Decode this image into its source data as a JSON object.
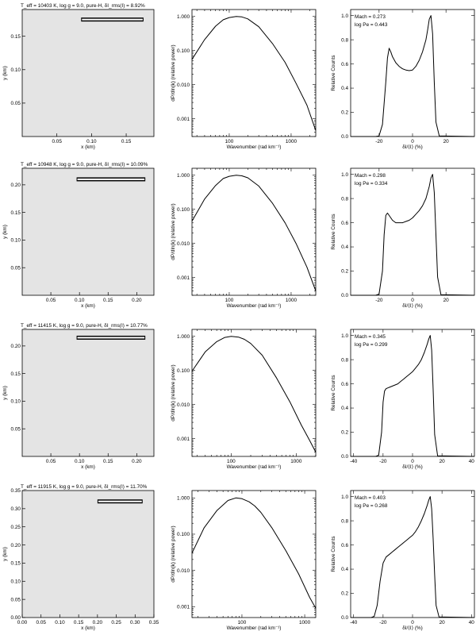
{
  "figure": {
    "rows": [
      {
        "image_title": "T_eff = 10403 K, log g = 9.0, pure-H, δI_rms(I) = 8.92%",
        "image": {
          "xticks": [
            "0.05",
            "0.10",
            "0.15"
          ],
          "yticks": [
            "0.05",
            "0.10",
            "0.15"
          ],
          "xlabel": "x (km)",
          "ylabel": "y (km)"
        },
        "spectrum": {
          "xticks": [
            "100",
            "1000"
          ],
          "yticks": [
            "1.000",
            "0.100",
            "0.010",
            "0.001"
          ],
          "xlabel": "Wavenumber (rad km⁻¹)",
          "ylabel": "dP/dln(k) (relative power)"
        },
        "histogram": {
          "annotation": [
            "Mach = 0.273",
            "log Pe = 0.443"
          ],
          "xticks": [
            "-20",
            "0",
            "20"
          ],
          "yticks": [
            "0.0",
            "0.2",
            "0.4",
            "0.6",
            "0.8",
            "1.0"
          ],
          "xlabel": "δI/⟨I⟩ (%)",
          "ylabel": "Relative Counts"
        }
      },
      {
        "image_title": "T_eff = 10948 K, log g = 9.0, pure-H, δI_rms(I) = 10.09%",
        "image": {
          "xticks": [
            "0.05",
            "0.10",
            "0.15",
            "0.20"
          ],
          "yticks": [
            "0.05",
            "0.10",
            "0.15",
            "0.20"
          ],
          "xlabel": "x (km)",
          "ylabel": "y (km)"
        },
        "spectrum": {
          "xticks": [
            "100",
            "1000"
          ],
          "yticks": [
            "1.000",
            "0.100",
            "0.010",
            "0.001"
          ],
          "xlabel": "Wavenumber (rad km⁻¹)",
          "ylabel": "dP/dln(k) (relative power)"
        },
        "histogram": {
          "annotation": [
            "Mach = 0.298",
            "log Pe = 0.334"
          ],
          "xticks": [
            "-20",
            "0",
            "20"
          ],
          "yticks": [
            "0.0",
            "0.2",
            "0.4",
            "0.6",
            "0.8",
            "1.0"
          ],
          "xlabel": "δI/⟨I⟩ (%)",
          "ylabel": "Relative Counts"
        }
      },
      {
        "image_title": "T_eff = 11415 K, log g = 9.0, pure-H, δI_rms(I) = 10.77%",
        "image": {
          "xticks": [
            "0.05",
            "0.10",
            "0.15",
            "0.20"
          ],
          "yticks": [
            "0.05",
            "0.10",
            "0.15",
            "0.20"
          ],
          "xlabel": "x (km)",
          "ylabel": "y (km)"
        },
        "spectrum": {
          "xticks": [
            "100",
            "1000"
          ],
          "yticks": [
            "1.000",
            "0.100",
            "0.010",
            "0.001"
          ],
          "xlabel": "Wavenumber (rad km⁻¹)",
          "ylabel": "dP/dln(k) (relative power)"
        },
        "histogram": {
          "annotation": [
            "Mach = 0.345",
            "log Pe = 0.299"
          ],
          "xticks": [
            "-40",
            "-20",
            "0",
            "20",
            "40"
          ],
          "yticks": [
            "0.0",
            "0.2",
            "0.4",
            "0.6",
            "0.8",
            "1.0"
          ],
          "xlabel": "δI/⟨I⟩ (%)",
          "ylabel": "Relative Counts"
        }
      },
      {
        "image_title": "T_eff = 11915 K, log g = 9.0, pure-H, δI_rms(I) = 11.70%",
        "image": {
          "xticks": [
            "0.00",
            "0.05",
            "0.10",
            "0.15",
            "0.20",
            "0.25",
            "0.30",
            "0.35"
          ],
          "yticks": [
            "0.00",
            "0.05",
            "0.10",
            "0.15",
            "0.20",
            "0.25",
            "0.30",
            "0.35"
          ],
          "xlabel": "x (km)",
          "ylabel": "y (km)"
        },
        "spectrum": {
          "xticks": [
            "100",
            "1000"
          ],
          "yticks": [
            "1.000",
            "0.100",
            "0.010",
            "0.001"
          ],
          "xlabel": "Wavenumber (rad km⁻¹)",
          "ylabel": "dP/dln(k) (relative power)"
        },
        "histogram": {
          "annotation": [
            "Mach = 0.403",
            "log Pe = 0.268"
          ],
          "xticks": [
            "-40",
            "-20",
            "0",
            "20",
            "40"
          ],
          "yticks": [
            "0.0",
            "0.2",
            "0.4",
            "0.6",
            "0.8",
            "1.0"
          ],
          "xlabel": "δI/⟨I⟩ (%)",
          "ylabel": "Relative Counts"
        }
      }
    ]
  },
  "chart_data": [
    {
      "type": "image",
      "xlim": [
        0.0,
        0.19
      ],
      "ylim": [
        0.0,
        0.19
      ],
      "scale_bar": {
        "x0": 0.085,
        "x1": 0.175,
        "y": 0.175
      }
    },
    {
      "type": "line",
      "xscale": "log",
      "yscale": "log",
      "xlim": [
        25,
        2500
      ],
      "ylim": [
        0.0003,
        1.6
      ],
      "series": [
        {
          "x": [
            25,
            40,
            60,
            80,
            100,
            130,
            160,
            200,
            300,
            500,
            800,
            1200,
            1800,
            2500
          ],
          "y": [
            0.055,
            0.21,
            0.52,
            0.8,
            0.93,
            1.0,
            0.97,
            0.85,
            0.5,
            0.16,
            0.045,
            0.011,
            0.0025,
            0.00045
          ]
        }
      ]
    },
    {
      "type": "line",
      "xlim": [
        -37,
        37
      ],
      "ylim": [
        0,
        1.05
      ],
      "series": [
        {
          "x": [
            -37,
            -22,
            -20,
            -18,
            -16,
            -15,
            -14,
            -13,
            -12,
            -10,
            -8,
            -6,
            -4,
            -2,
            0,
            2,
            4,
            6,
            8,
            9,
            10,
            11,
            12,
            13,
            14,
            16,
            37
          ],
          "y": [
            0,
            0,
            0.005,
            0.1,
            0.45,
            0.65,
            0.73,
            0.7,
            0.66,
            0.61,
            0.58,
            0.56,
            0.55,
            0.545,
            0.55,
            0.58,
            0.63,
            0.7,
            0.8,
            0.88,
            0.97,
            1.0,
            0.85,
            0.45,
            0.12,
            0.005,
            0
          ]
        }
      ]
    },
    {
      "type": "image",
      "xlim": [
        0.0,
        0.23
      ],
      "ylim": [
        0.0,
        0.23
      ],
      "scale_bar": {
        "x0": 0.095,
        "x1": 0.215,
        "y": 0.21
      }
    },
    {
      "type": "line",
      "xscale": "log",
      "yscale": "log",
      "xlim": [
        25,
        2500
      ],
      "ylim": [
        0.0003,
        1.6
      ],
      "series": [
        {
          "x": [
            25,
            40,
            60,
            80,
            100,
            130,
            160,
            200,
            300,
            500,
            800,
            1200,
            1800,
            2500
          ],
          "y": [
            0.045,
            0.2,
            0.5,
            0.8,
            0.93,
            1.0,
            0.96,
            0.84,
            0.48,
            0.15,
            0.04,
            0.01,
            0.002,
            0.0004
          ]
        }
      ]
    },
    {
      "type": "line",
      "xlim": [
        -37,
        37
      ],
      "ylim": [
        0,
        1.05
      ],
      "series": [
        {
          "x": [
            -37,
            -22,
            -20,
            -18,
            -17,
            -16,
            -15,
            -14,
            -12,
            -10,
            -8,
            -6,
            -4,
            -2,
            0,
            2,
            4,
            6,
            8,
            10,
            11,
            12,
            13,
            14,
            15,
            17,
            37
          ],
          "y": [
            0,
            0,
            0.01,
            0.2,
            0.5,
            0.66,
            0.68,
            0.66,
            0.62,
            0.6,
            0.6,
            0.6,
            0.61,
            0.62,
            0.64,
            0.67,
            0.7,
            0.74,
            0.8,
            0.9,
            0.97,
            1.0,
            0.85,
            0.5,
            0.15,
            0.005,
            0
          ]
        }
      ]
    },
    {
      "type": "image",
      "xlim": [
        0.0,
        0.23
      ],
      "ylim": [
        0.0,
        0.23
      ],
      "scale_bar": {
        "x0": 0.095,
        "x1": 0.215,
        "y": 0.215
      }
    },
    {
      "type": "line",
      "xscale": "log",
      "yscale": "log",
      "xlim": [
        25,
        2000
      ],
      "ylim": [
        0.0003,
        1.6
      ],
      "series": [
        {
          "x": [
            25,
            40,
            60,
            80,
            100,
            130,
            160,
            200,
            300,
            500,
            800,
            1200,
            1600,
            2000
          ],
          "y": [
            0.095,
            0.35,
            0.7,
            0.93,
            1.0,
            0.95,
            0.82,
            0.62,
            0.28,
            0.06,
            0.012,
            0.0025,
            0.0009,
            0.0004
          ]
        }
      ]
    },
    {
      "type": "line",
      "xlim": [
        -42,
        42
      ],
      "ylim": [
        0,
        1.05
      ],
      "series": [
        {
          "x": [
            -42,
            -25,
            -23,
            -21,
            -20,
            -19,
            -18,
            -16,
            -14,
            -12,
            -10,
            -8,
            -6,
            -4,
            -2,
            0,
            2,
            4,
            6,
            8,
            10,
            11,
            12,
            13,
            14,
            15,
            17,
            42
          ],
          "y": [
            0,
            0,
            0.01,
            0.2,
            0.45,
            0.54,
            0.56,
            0.57,
            0.58,
            0.59,
            0.6,
            0.62,
            0.64,
            0.66,
            0.68,
            0.7,
            0.73,
            0.76,
            0.8,
            0.86,
            0.93,
            0.97,
            1.0,
            0.88,
            0.55,
            0.18,
            0.005,
            0
          ]
        }
      ]
    },
    {
      "type": "image",
      "xlim": [
        0.0,
        0.35
      ],
      "ylim": [
        0.0,
        0.35
      ],
      "scale_bar": {
        "x0": 0.2,
        "x1": 0.32,
        "y": 0.32
      }
    },
    {
      "type": "line",
      "xscale": "log",
      "yscale": "log",
      "xlim": [
        16,
        1500
      ],
      "ylim": [
        0.0005,
        1.6
      ],
      "series": [
        {
          "x": [
            16,
            25,
            40,
            60,
            80,
            100,
            130,
            160,
            200,
            300,
            500,
            800,
            1200,
            1500
          ],
          "y": [
            0.03,
            0.15,
            0.45,
            0.85,
            1.0,
            0.95,
            0.78,
            0.6,
            0.4,
            0.15,
            0.035,
            0.008,
            0.0018,
            0.0009
          ]
        }
      ]
    },
    {
      "type": "line",
      "xlim": [
        -42,
        42
      ],
      "ylim": [
        0,
        1.05
      ],
      "series": [
        {
          "x": [
            -42,
            -28,
            -26,
            -24,
            -22,
            -20,
            -18,
            -16,
            -14,
            -12,
            -10,
            -8,
            -6,
            -4,
            -2,
            0,
            2,
            4,
            6,
            8,
            10,
            11,
            12,
            13,
            14,
            15,
            16,
            18,
            42
          ],
          "y": [
            0,
            0,
            0.01,
            0.1,
            0.3,
            0.45,
            0.5,
            0.52,
            0.54,
            0.56,
            0.58,
            0.6,
            0.62,
            0.64,
            0.66,
            0.68,
            0.71,
            0.75,
            0.8,
            0.86,
            0.93,
            0.97,
            1.0,
            0.9,
            0.65,
            0.35,
            0.1,
            0.005,
            0
          ]
        }
      ]
    }
  ]
}
